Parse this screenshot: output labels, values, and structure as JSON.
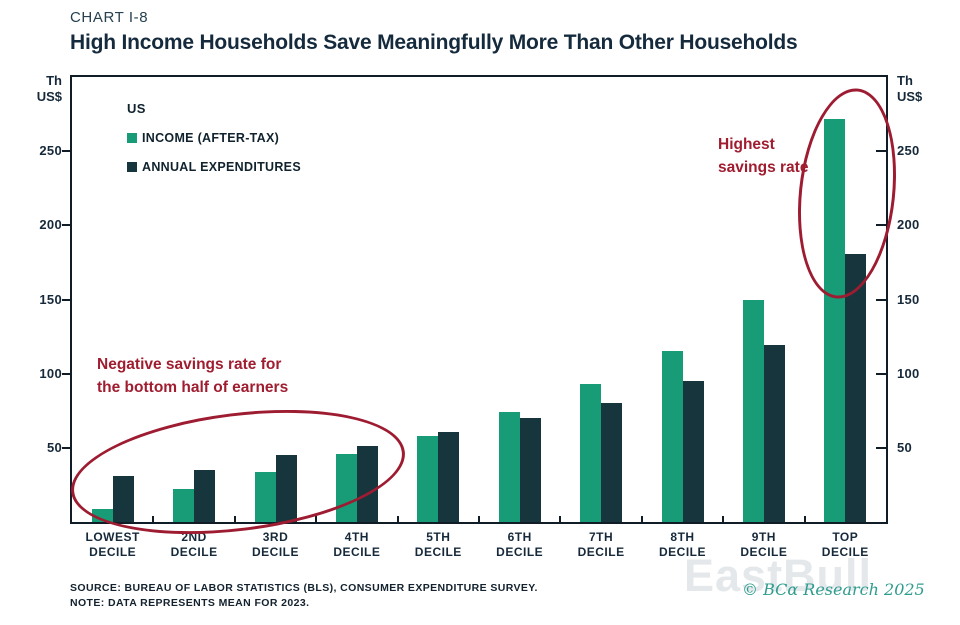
{
  "header": {
    "kicker": "CHART I-8",
    "title": "High Income Households Save Meaningfully More Than Other Households"
  },
  "axis": {
    "unit_lines": [
      "Th",
      "US$"
    ]
  },
  "legend": {
    "region": "US",
    "items": [
      {
        "label": "INCOME (AFTER-TAX)",
        "color": "#189c77"
      },
      {
        "label": "ANNUAL EXPENDITURES",
        "color": "#17353c"
      }
    ]
  },
  "annotations": {
    "bottom_left": "Negative savings rate for the bottom half of earners",
    "top_right": "Highest savings rate",
    "circle_color": "#9e1c31"
  },
  "footer": {
    "source": "SOURCE: BUREAU OF LABOR STATISTICS (BLS), CONSUMER EXPENDITURE SURVEY.",
    "note": "NOTE: DATA REPRESENTS MEAN FOR 2023.",
    "copyright": "© BCα Research 2025",
    "watermark": "EastBull"
  },
  "chart_data": {
    "type": "bar",
    "title": "High Income Households Save Meaningfully More Than Other Households",
    "categories": [
      [
        "LOWEST",
        "DECILE"
      ],
      [
        "2ND",
        "DECILE"
      ],
      [
        "3RD",
        "DECILE"
      ],
      [
        "4TH",
        "DECILE"
      ],
      [
        "5TH",
        "DECILE"
      ],
      [
        "6TH",
        "DECILE"
      ],
      [
        "7TH",
        "DECILE"
      ],
      [
        "8TH",
        "DECILE"
      ],
      [
        "9TH",
        "DECILE"
      ],
      [
        "TOP",
        "DECILE"
      ]
    ],
    "series": [
      {
        "name": "INCOME (AFTER-TAX)",
        "color": "#189c77",
        "values": [
          9,
          22,
          34,
          46,
          58,
          74,
          93,
          115,
          150,
          272
        ]
      },
      {
        "name": "ANNUAL EXPENDITURES",
        "color": "#17353c",
        "values": [
          31,
          35,
          45,
          51,
          61,
          70,
          80,
          95,
          119,
          181
        ]
      }
    ],
    "ylabel": "Th US$",
    "xlabel": "",
    "ylim": [
      0,
      300
    ],
    "yticks": [
      50,
      100,
      150,
      200,
      250
    ],
    "grid": false,
    "legend_position": "top-left"
  }
}
